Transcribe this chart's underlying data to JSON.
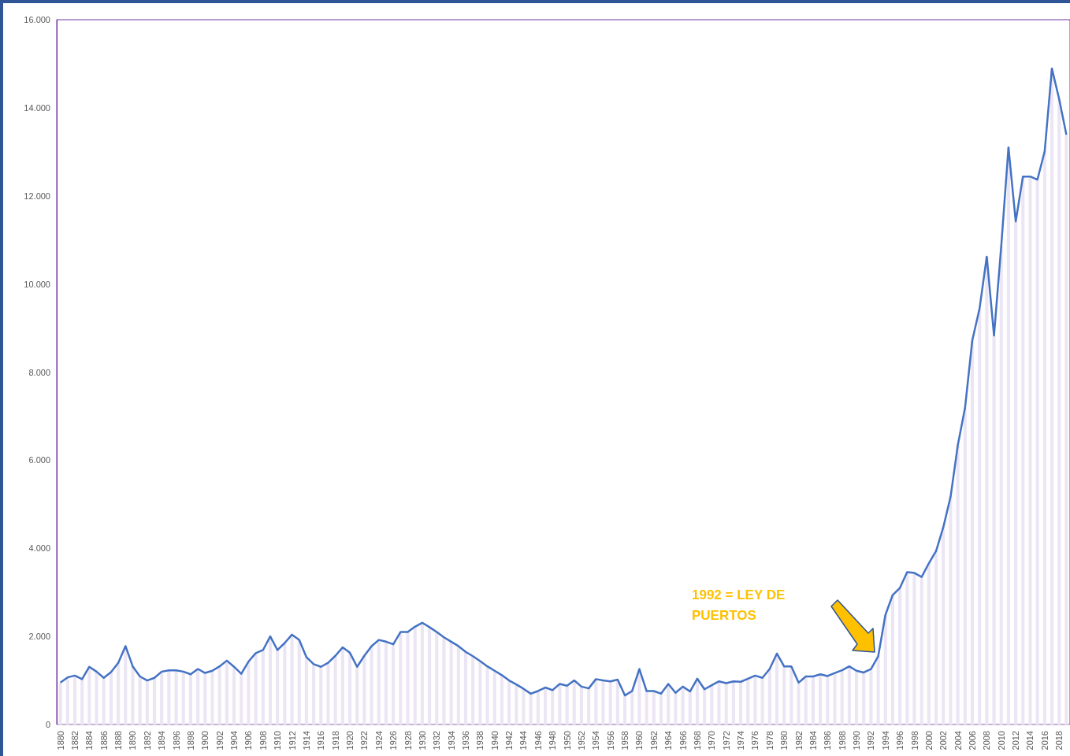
{
  "chart_data": {
    "type": "bar",
    "categories": [
      "1880",
      null,
      "1882",
      null,
      "1884",
      null,
      "1886",
      null,
      "1888",
      null,
      "1890",
      null,
      "1892",
      null,
      "1894",
      null,
      "1896",
      null,
      "1898",
      null,
      "1900",
      null,
      "1902",
      null,
      "1904",
      null,
      "1906",
      null,
      "1908",
      null,
      "1910",
      null,
      "1912",
      null,
      "1914",
      null,
      "1916",
      null,
      "1918",
      null,
      "1920",
      null,
      "1922",
      null,
      "1924",
      null,
      "1926",
      null,
      "1928",
      null,
      "1930",
      null,
      "1932",
      null,
      "1934",
      null,
      "1936",
      null,
      "1938",
      null,
      "1940",
      null,
      "1942",
      null,
      "1944",
      null,
      "1946",
      null,
      "1948",
      null,
      "1950",
      null,
      "1952",
      null,
      "1954",
      null,
      "1956",
      null,
      "1958",
      null,
      "1960",
      null,
      "1962",
      null,
      "1964",
      null,
      "1966",
      null,
      "1968",
      null,
      "1970",
      null,
      "1972",
      null,
      "1974",
      null,
      "1976",
      null,
      "1978",
      null,
      "1980",
      null,
      "1982",
      null,
      "1984",
      null,
      "1986",
      null,
      "1988",
      null,
      "1990",
      null,
      "1992",
      null,
      "1994",
      null,
      "1996",
      null,
      "1998",
      null,
      "2000",
      null,
      "2002",
      null,
      "2004",
      null,
      "2006",
      null,
      "2008",
      null,
      "2010",
      null,
      "2012",
      null,
      "2014",
      null,
      "2016",
      null,
      "2018",
      null
    ],
    "series": [
      {
        "color": "#ece6f4",
        "values": [
          950,
          1070,
          1110,
          1030,
          1310,
          1200,
          1060,
          1190,
          1400,
          1780,
          1320,
          1090,
          1000,
          1060,
          1200,
          1230,
          1230,
          1200,
          1140,
          1260,
          1170,
          1220,
          1320,
          1450,
          1310,
          1150,
          1430,
          1620,
          1690,
          2000,
          1690,
          1850,
          2040,
          1920,
          1530,
          1370,
          1310,
          1400,
          1560,
          1750,
          1630,
          1310,
          1560,
          1780,
          1920,
          1880,
          1820,
          2100,
          2100,
          2220,
          2310,
          2210,
          2100,
          1980,
          1880,
          1780,
          1650,
          1550,
          1440,
          1320,
          1220,
          1120,
          1000,
          910,
          810,
          700,
          760,
          840,
          780,
          920,
          880,
          1000,
          860,
          820,
          1030,
          1000,
          980,
          1020,
          660,
          760,
          1260,
          760,
          760,
          700,
          920,
          720,
          860,
          750,
          1040,
          800,
          890,
          980,
          940,
          980,
          970,
          1040,
          1110,
          1060,
          1260,
          1610,
          1320,
          1320,
          950,
          1090,
          1090,
          1140,
          1100,
          1170,
          1230,
          1320,
          1220,
          1180,
          1260,
          1550,
          2490,
          2940,
          3100,
          3460,
          3440,
          3350,
          3660,
          3940,
          4480,
          5170,
          6340,
          7190,
          8720,
          9440,
          10620,
          8830,
          10860,
          13100,
          11420,
          12440,
          12440,
          12370,
          13010,
          14890,
          14200,
          13390
        ]
      },
      {
        "type": "line",
        "color": "#4472c4",
        "values": [
          950,
          1070,
          1110,
          1030,
          1310,
          1200,
          1060,
          1190,
          1400,
          1780,
          1320,
          1090,
          1000,
          1060,
          1200,
          1230,
          1230,
          1200,
          1140,
          1260,
          1170,
          1220,
          1320,
          1450,
          1310,
          1150,
          1430,
          1620,
          1690,
          2000,
          1690,
          1850,
          2040,
          1920,
          1530,
          1370,
          1310,
          1400,
          1560,
          1750,
          1630,
          1310,
          1560,
          1780,
          1920,
          1880,
          1820,
          2100,
          2100,
          2220,
          2310,
          2210,
          2100,
          1980,
          1880,
          1780,
          1650,
          1550,
          1440,
          1320,
          1220,
          1120,
          1000,
          910,
          810,
          700,
          760,
          840,
          780,
          920,
          880,
          1000,
          860,
          820,
          1030,
          1000,
          980,
          1020,
          660,
          760,
          1260,
          760,
          760,
          700,
          920,
          720,
          860,
          750,
          1040,
          800,
          890,
          980,
          940,
          980,
          970,
          1040,
          1110,
          1060,
          1260,
          1610,
          1320,
          1320,
          950,
          1090,
          1090,
          1140,
          1100,
          1170,
          1230,
          1320,
          1220,
          1180,
          1260,
          1550,
          2490,
          2940,
          3100,
          3460,
          3440,
          3350,
          3660,
          3940,
          4480,
          5170,
          6340,
          7190,
          8720,
          9440,
          10620,
          8830,
          10860,
          13100,
          11420,
          12440,
          12440,
          12370,
          13010,
          14890,
          14200,
          13390
        ]
      }
    ],
    "ylim": [
      0,
      16000
    ],
    "yticks": [
      0,
      {
        "value": 2000,
        "label": "2.000"
      },
      {
        "value": 4000,
        "label": "4.000"
      },
      {
        "value": 6000,
        "label": "6.000"
      },
      {
        "value": 8000,
        "label": "8.000"
      },
      {
        "value": 10000,
        "label": "10.000"
      },
      {
        "value": 12000,
        "label": "12.000"
      },
      {
        "value": 14000,
        "label": "14.000"
      },
      {
        "value": 16000,
        "label": "16.000"
      }
    ],
    "annotations": [
      "1992 = LEY DE\nPUERTOS"
    ]
  }
}
